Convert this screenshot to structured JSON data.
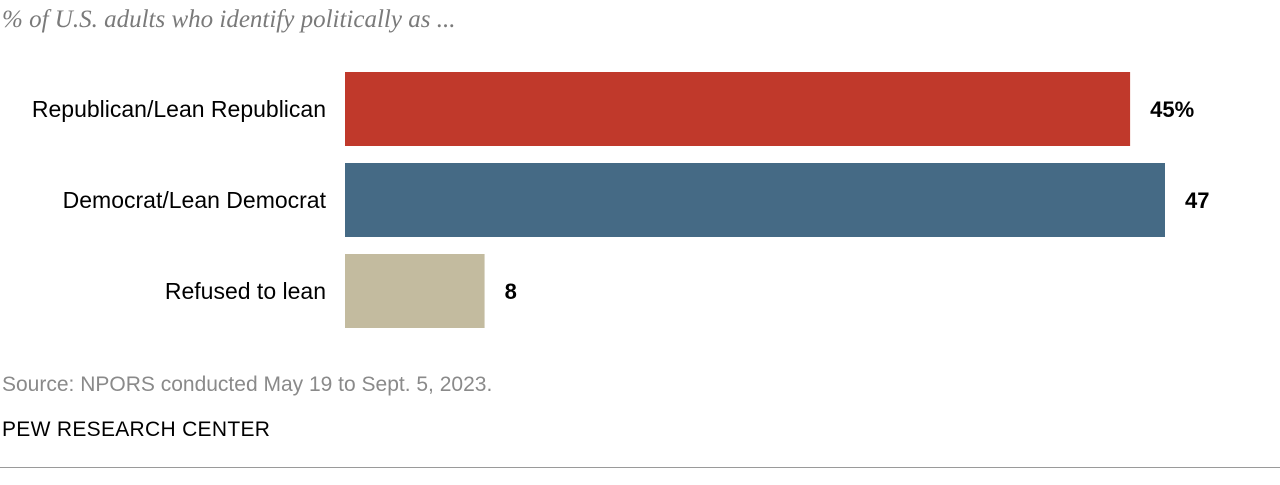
{
  "chart_data": {
    "type": "bar",
    "orientation": "horizontal",
    "title": "% of U.S. adults who identify politically as ...",
    "categories": [
      "Republican/Lean Republican",
      "Democrat/Lean Democrat",
      "Refused to lean"
    ],
    "values": [
      45,
      47,
      8
    ],
    "value_labels": [
      "45%",
      "47",
      "8"
    ],
    "colors": [
      "#c0392b",
      "#456a85",
      "#c3bb9f"
    ],
    "xlim": [
      0,
      47
    ],
    "xlabel": "",
    "ylabel": "",
    "grid": false,
    "legend": "none"
  },
  "footer": {
    "source": "Source: NPORS conducted May 19 to Sept. 5, 2023.",
    "brand": "PEW RESEARCH CENTER"
  },
  "colors": {
    "rule": "#9a9a9a",
    "muted_text": "#8a8a8a"
  }
}
